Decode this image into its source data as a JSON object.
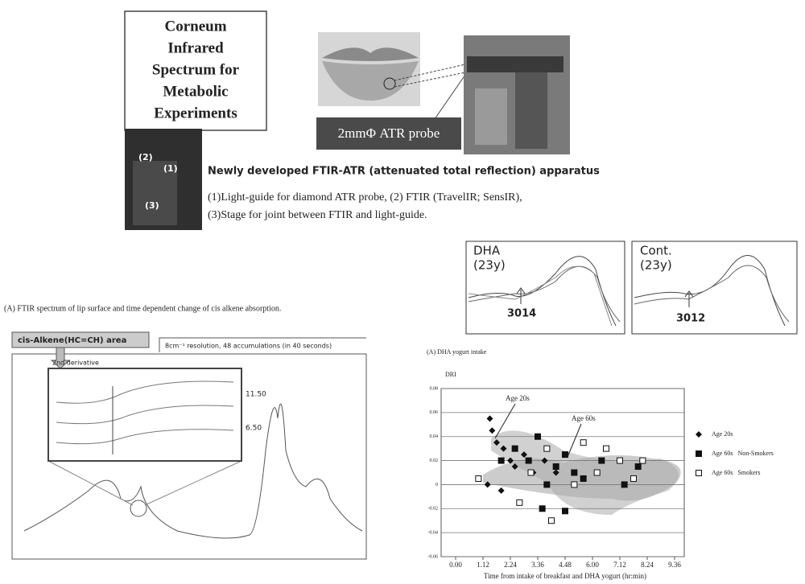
{
  "title_box": {
    "lines": [
      "Corneum",
      "Infrared",
      "Spectrum for",
      "Metabolic",
      "Experiments"
    ]
  },
  "probe_label": "2mmΦ ATR probe",
  "apparatus": {
    "heading": "Newly developed FTIR-ATR (attenuated total reflection) apparatus",
    "caption": [
      "(1)Light-guide for diamond ATR probe, (2) FTIR (TravelIR; SensIR),",
      "(3)Stage for joint between FTIR and light-guide."
    ],
    "photo_labels": [
      "(2)",
      "(1)",
      "(3)"
    ]
  },
  "derivative_panels": [
    {
      "label": "DHA",
      "age": "(23y)",
      "peak": "3014"
    },
    {
      "label": "Cont.",
      "age": "(23y)",
      "peak": "3012"
    }
  ],
  "spectrum_panel": {
    "caption": "(A) FTIR spectrum of lip surface and time dependent change of cis alkene absorption.",
    "area_tag": "cis-Alkene(HC=CH) area",
    "note": "8cm⁻¹ resolution, 48 accumulations (in 40 seconds)",
    "inset_title": "2nd derivative",
    "inset_labels": [
      "11.50",
      "6.50"
    ]
  },
  "chart_data": [
    {
      "type": "scatter",
      "caption": "(A)  DHA yogurt intake",
      "y_label": "DRI",
      "x_label": "Time from intake of breakfast and DHA yogurt (hr:min)",
      "annotations": [
        "Age 20s",
        "Age 60s"
      ],
      "xlim": [
        0,
        9.6
      ],
      "ylim": [
        -0.06,
        0.08
      ],
      "xticks": [
        {
          "value": 0,
          "label": "0.00"
        },
        {
          "value": 1.2,
          "label": "1.12"
        },
        {
          "value": 2.4,
          "label": "2.24"
        },
        {
          "value": 3.6,
          "label": "3.36"
        },
        {
          "value": 4.8,
          "label": "4.48"
        },
        {
          "value": 6.0,
          "label": "6.00"
        },
        {
          "value": 7.2,
          "label": "7.12"
        },
        {
          "value": 8.4,
          "label": "8.24"
        },
        {
          "value": 9.6,
          "label": "9.36"
        }
      ],
      "yticks": [
        0.08,
        0.06,
        0.04,
        0.02,
        0,
        -0.02,
        -0.04,
        -0.06
      ],
      "grid": true,
      "series": [
        {
          "name": "Age 20s",
          "marker": "diamond",
          "color": "#111111",
          "x": [
            1.5,
            1.6,
            1.8,
            2.1,
            2.4,
            2.6,
            3.0,
            3.4,
            3.9,
            4.4,
            1.4,
            2.0
          ],
          "values": [
            0.055,
            0.045,
            0.035,
            0.03,
            0.02,
            0.015,
            0.025,
            0.01,
            0.02,
            0.01,
            0.0,
            -0.005
          ]
        },
        {
          "name": "Age 60s   Non-Smokers",
          "marker": "square",
          "color": "#111111",
          "x": [
            2.0,
            2.6,
            3.2,
            3.6,
            4.0,
            4.4,
            4.8,
            5.2,
            5.6,
            6.4,
            7.4,
            8.0,
            3.8,
            4.8
          ],
          "values": [
            0.02,
            0.03,
            0.02,
            0.04,
            0.0,
            0.015,
            0.025,
            0.01,
            0.005,
            0.02,
            0.0,
            0.015,
            -0.02,
            -0.022
          ]
        },
        {
          "name": "Age 60s   Smokers",
          "marker": "open-square",
          "color": "#111111",
          "x": [
            1.0,
            2.8,
            3.3,
            4.0,
            5.6,
            6.2,
            6.6,
            7.2,
            7.8,
            8.2,
            4.2,
            5.2
          ],
          "values": [
            0.005,
            -0.015,
            0.01,
            0.03,
            0.035,
            0.01,
            0.03,
            0.02,
            0.005,
            0.02,
            -0.03,
            0.0
          ]
        }
      ]
    }
  ]
}
